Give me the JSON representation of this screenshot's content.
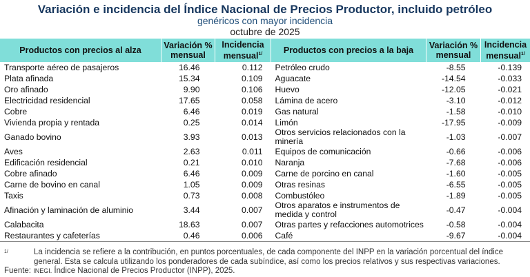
{
  "title": "Variación e incidencia del Índice Nacional de Precios Productor, incluido petróleo",
  "subtitle": "genéricos con mayor incidencia",
  "period": "octubre de 2025",
  "headers": {
    "up_products": "Productos con precios al alza",
    "variation": "Variación %",
    "variation2": "mensual",
    "incidence": "Incidencia",
    "incidence2": "mensual",
    "note_mark": "1/",
    "down_products": "Productos con precios a la baja"
  },
  "rows": [
    {
      "up": "Transporte aéreo de pasajeros",
      "uv": "16.46",
      "ui": "0.112",
      "down": "Petróleo crudo",
      "dv": "-8.55",
      "di": "-0.139"
    },
    {
      "up": "Plata afinada",
      "uv": "15.34",
      "ui": "0.109",
      "down": "Aguacate",
      "dv": "-14.54",
      "di": "-0.033"
    },
    {
      "up": "Oro afinado",
      "uv": "9.90",
      "ui": "0.106",
      "down": "Huevo",
      "dv": "-12.05",
      "di": "-0.021"
    },
    {
      "up": "Electricidad residencial",
      "uv": "17.65",
      "ui": "0.058",
      "down": "Lámina de acero",
      "dv": "-3.10",
      "di": "-0.012"
    },
    {
      "up": "Cobre",
      "uv": "6.46",
      "ui": "0.019",
      "down": "Gas natural",
      "dv": "-1.58",
      "di": "-0.010"
    },
    {
      "up": "Vivienda propia y rentada",
      "uv": "0.25",
      "ui": "0.014",
      "down": "Limón",
      "dv": "-17.95",
      "di": "-0.009"
    },
    {
      "up": "Ganado bovino",
      "uv": "3.93",
      "ui": "0.013",
      "down": "Otros servicios relacionados con la minería",
      "dv": "-1.03",
      "di": "-0.007"
    },
    {
      "up": "Aves",
      "uv": "2.63",
      "ui": "0.011",
      "down": "Equipos de comunicación",
      "dv": "-0.66",
      "di": "-0.006"
    },
    {
      "up": "Edificación residencial",
      "uv": "0.21",
      "ui": "0.010",
      "down": "Naranja",
      "dv": "-7.68",
      "di": "-0.006"
    },
    {
      "up": "Cobre afinado",
      "uv": "6.46",
      "ui": "0.009",
      "down": "Carne de porcino en canal",
      "dv": "-1.60",
      "di": "-0.005"
    },
    {
      "up": "Carne de bovino en canal",
      "uv": "1.05",
      "ui": "0.009",
      "down": "Otras resinas",
      "dv": "-6.55",
      "di": "-0.005"
    },
    {
      "up": "Taxis",
      "uv": "0.73",
      "ui": "0.008",
      "down": "Combustóleo",
      "dv": "-1.89",
      "di": "-0.005"
    },
    {
      "up": "Afinación y laminación de aluminio",
      "uv": "3.44",
      "ui": "0.007",
      "down": "Otros aparatos e instrumentos de medida y control",
      "dv": "-0.47",
      "di": "-0.004"
    },
    {
      "up": "Calabacita",
      "uv": "18.63",
      "ui": "0.007",
      "down": "Otras partes y refacciones automotrices",
      "dv": "-0.58",
      "di": "-0.004"
    },
    {
      "up": "Restaurantes y cafeterías",
      "uv": "0.46",
      "ui": "0.006",
      "down": "Café",
      "dv": "-9.67",
      "di": "-0.004"
    }
  ],
  "note": {
    "mark": "1/",
    "text": "La incidencia se refiere a la contribución, en puntos porcentuales, de cada componente del INPP en la variación porcentual del índice general. Esta se calcula utilizando los ponderadores de cada subíndice, así como los precios relativos y sus respectivas variaciones."
  },
  "source": {
    "label": "Fuente:",
    "org": "INEGI.",
    "text": "Índice Nacional de Precios Productor (INPP), 2025."
  }
}
